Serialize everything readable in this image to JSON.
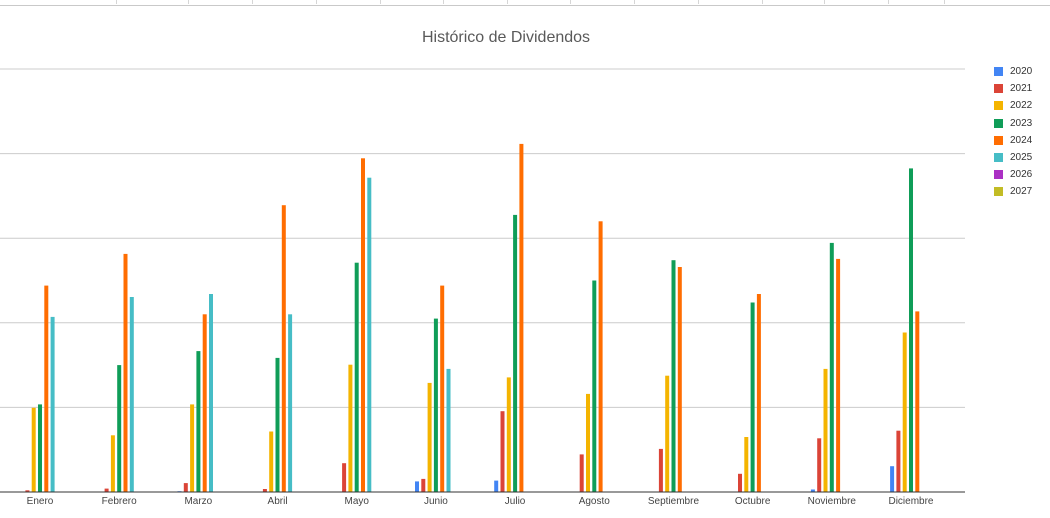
{
  "chart_data": {
    "type": "bar",
    "title": "Histórico de Dividendos",
    "xlabel": "",
    "ylabel": "",
    "ylim": [
      0,
      100
    ],
    "grid": true,
    "legend_position": "right",
    "categories": [
      "Enero",
      "Febrero",
      "Marzo",
      "Abril",
      "Mayo",
      "Junio",
      "Julio",
      "Agosto",
      "Septiembre",
      "Octubre",
      "Noviembre",
      "Diciembre"
    ],
    "series": [
      {
        "name": "2020",
        "color": "#4285f4",
        "values": [
          0,
          0,
          0.2,
          0,
          0,
          2.5,
          2.7,
          0,
          0,
          0,
          0.6,
          6.1
        ]
      },
      {
        "name": "2021",
        "color": "#db4437",
        "values": [
          0.4,
          0.8,
          2.1,
          0.7,
          6.8,
          3.1,
          19.1,
          8.9,
          10.2,
          4.3,
          12.7,
          14.5
        ]
      },
      {
        "name": "2022",
        "color": "#f4b400",
        "values": [
          19.9,
          13.4,
          20.7,
          14.3,
          30.1,
          25.8,
          27.1,
          23.2,
          27.5,
          13.0,
          29.1,
          37.7
        ]
      },
      {
        "name": "2023",
        "color": "#0f9d58",
        "values": [
          20.7,
          30.0,
          33.3,
          31.7,
          54.2,
          41.0,
          65.5,
          50.0,
          54.8,
          44.8,
          58.9,
          76.5
        ]
      },
      {
        "name": "2024",
        "color": "#ff6d01",
        "values": [
          48.8,
          56.3,
          42.0,
          67.8,
          78.9,
          48.8,
          82.3,
          64.0,
          53.2,
          46.8,
          55.1,
          42.7
        ]
      },
      {
        "name": "2025",
        "color": "#46bdc6",
        "values": [
          41.4,
          46.1,
          46.8,
          42.0,
          74.3,
          29.1,
          0,
          0,
          0,
          0,
          0,
          0
        ]
      },
      {
        "name": "2026",
        "color": "#ab30c4",
        "values": [
          0,
          0,
          0,
          0,
          0,
          0,
          0,
          0,
          0,
          0,
          0,
          0
        ]
      },
      {
        "name": "2027",
        "color": "#c2bc25",
        "values": [
          0,
          0,
          0,
          0,
          0,
          0,
          0,
          0,
          0,
          0,
          0,
          0
        ]
      }
    ]
  }
}
